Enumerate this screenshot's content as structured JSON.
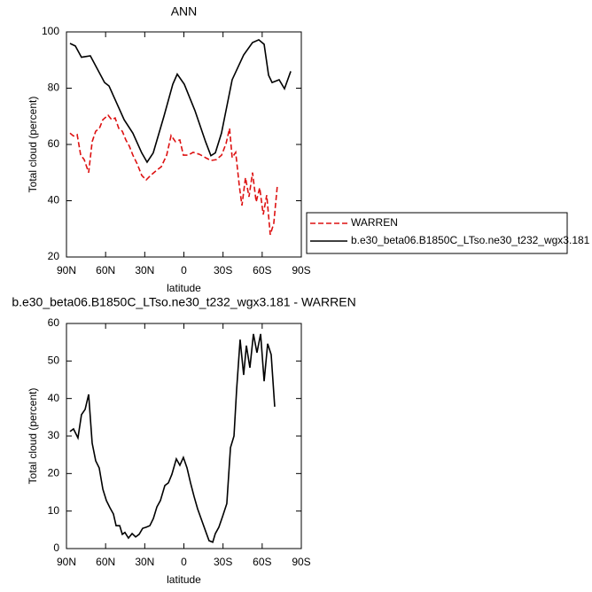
{
  "chart_data": [
    {
      "type": "line",
      "title": "ANN",
      "xlabel": "latitude",
      "ylabel": "Total cloud (percent)",
      "xlim": [
        90,
        -90
      ],
      "xticks": [
        {
          "value": 90,
          "label": "90N"
        },
        {
          "value": 60,
          "label": "60N"
        },
        {
          "value": 30,
          "label": "30N"
        },
        0,
        {
          "value": -30,
          "label": "30S"
        },
        {
          "value": -60,
          "label": "60S"
        },
        {
          "value": -90,
          "label": "90S"
        }
      ],
      "ylim": [
        20,
        100
      ],
      "yticks": [
        20,
        40,
        60,
        80,
        100
      ],
      "legend": "right",
      "series": [
        {
          "name": "WARREN",
          "color": "#dd1111",
          "line_style": "dashed",
          "x": [
            87.3,
            84.6,
            81.8,
            79.1,
            76.4,
            73,
            70.3,
            67.6,
            64.8,
            62.1,
            58.1,
            55.4,
            52.7,
            49.9,
            47.2,
            44.5,
            41.8,
            39.1,
            35.7,
            32.3,
            28.9,
            25.5,
            21.4,
            17.3,
            13.2,
            9.8,
            6.5,
            3.1,
            0.4,
            -3.1,
            -7.1,
            -11.9,
            -16.6,
            -20.7,
            -24.8,
            -28.9,
            -32.3,
            -35,
            -37,
            -39.7,
            -42.5,
            -44.5,
            -47.2,
            -49.9,
            -52.6,
            -55.4,
            -58.1,
            -60.8,
            -63.5,
            -66.2,
            -68.9,
            -71.7
          ],
          "values": [
            64,
            63,
            63.5,
            56.2,
            54.6,
            50,
            61,
            64.7,
            65.7,
            68.8,
            70.4,
            68.8,
            69.4,
            65.7,
            64.7,
            61.6,
            59.4,
            56.2,
            53,
            49,
            47.4,
            49,
            50.6,
            52.1,
            56.2,
            63.2,
            61,
            61.6,
            56.2,
            56.2,
            57.2,
            56.5,
            55.3,
            54.3,
            54.6,
            56.2,
            60.3,
            65.7,
            55.3,
            57.2,
            45.2,
            38.3,
            48.2,
            41.4,
            50,
            39.6,
            44.6,
            35.1,
            42,
            27.9,
            32,
            45.8
          ]
        },
        {
          "name": "b.e30_beta06.B1850C_LTso.ne30_t232_wgx3.181",
          "color": "#000000",
          "line_style": "solid",
          "x": [
            87.3,
            83.2,
            78.5,
            71.7,
            60.8,
            57.4,
            45.8,
            39.1,
            32.3,
            28.2,
            23.5,
            15.3,
            8.5,
            5.1,
            -0.3,
            -8.5,
            -16.6,
            -20.7,
            -24.1,
            -28.8,
            -37,
            -45.8,
            -52.6,
            -57.4,
            -61.5,
            -64.9,
            -67.6,
            -73,
            -77.1,
            -81.9
          ],
          "values": [
            95.9,
            95,
            91,
            91.5,
            82,
            80.8,
            68.8,
            64,
            57,
            53.7,
            57,
            70,
            81.4,
            85,
            81.4,
            72,
            61,
            56,
            57,
            64,
            83,
            91.8,
            96.2,
            97.2,
            95.6,
            84.6,
            82,
            83,
            79.8,
            86
          ]
        }
      ]
    },
    {
      "type": "line",
      "title": "b.e30_beta06.B1850C_LTso.ne30_t232_wgx3.181 - WARREN",
      "xlabel": "latitude",
      "ylabel": "Total cloud (percent)",
      "xlim": [
        90,
        -90
      ],
      "xticks": [
        {
          "value": 90,
          "label": "90N"
        },
        {
          "value": 60,
          "label": "60N"
        },
        {
          "value": 30,
          "label": "30N"
        },
        0,
        {
          "value": -30,
          "label": "30S"
        },
        {
          "value": -60,
          "label": "60S"
        },
        {
          "value": -90,
          "label": "90S"
        }
      ],
      "ylim": [
        0,
        60
      ],
      "yticks": [
        0,
        10,
        20,
        30,
        40,
        50,
        60
      ],
      "series": [
        {
          "color": "#000000",
          "line_style": "solid",
          "x": [
            87.3,
            84.6,
            81.2,
            78.5,
            75.7,
            73,
            70.3,
            67.6,
            64.9,
            62.1,
            59.4,
            56.7,
            54,
            51.96,
            49.2,
            47.2,
            45.2,
            42.5,
            39.7,
            37,
            34.3,
            31.6,
            28.9,
            26.1,
            23.4,
            20.7,
            18,
            14.6,
            11.9,
            9.2,
            5.8,
            3.1,
            0.4,
            -2.4,
            -5.1,
            -7.8,
            -10.5,
            -13.9,
            -17.3,
            -19.3,
            -22.1,
            -24.1,
            -26.8,
            -29.6,
            -32.9,
            -35.7,
            -38.4,
            -40.4,
            -43.1,
            -45.8,
            -47.9,
            -50.6,
            -53.3,
            -56,
            -58.8,
            -61.5,
            -64.2,
            -66.9,
            -69.6
          ],
          "values": [
            31.2,
            31.9,
            29.5,
            35.7,
            37.1,
            41.1,
            28.1,
            23.4,
            21.5,
            15.8,
            12.8,
            10.9,
            9.2,
            6.1,
            6.1,
            3.8,
            4.3,
            2.8,
            4,
            3.1,
            3.8,
            5.4,
            5.7,
            6.1,
            8,
            11.1,
            12.8,
            16.8,
            17.5,
            19.8,
            23.9,
            22.2,
            24.3,
            21.5,
            17.5,
            13.9,
            10.6,
            7.3,
            4,
            2.1,
            1.7,
            4,
            5.7,
            8.5,
            12,
            26.9,
            30,
            42.3,
            55.7,
            46.3,
            54.1,
            48.2,
            57.2,
            52.2,
            57.2,
            44.6,
            54.6,
            51.7,
            37.8
          ]
        }
      ]
    }
  ]
}
